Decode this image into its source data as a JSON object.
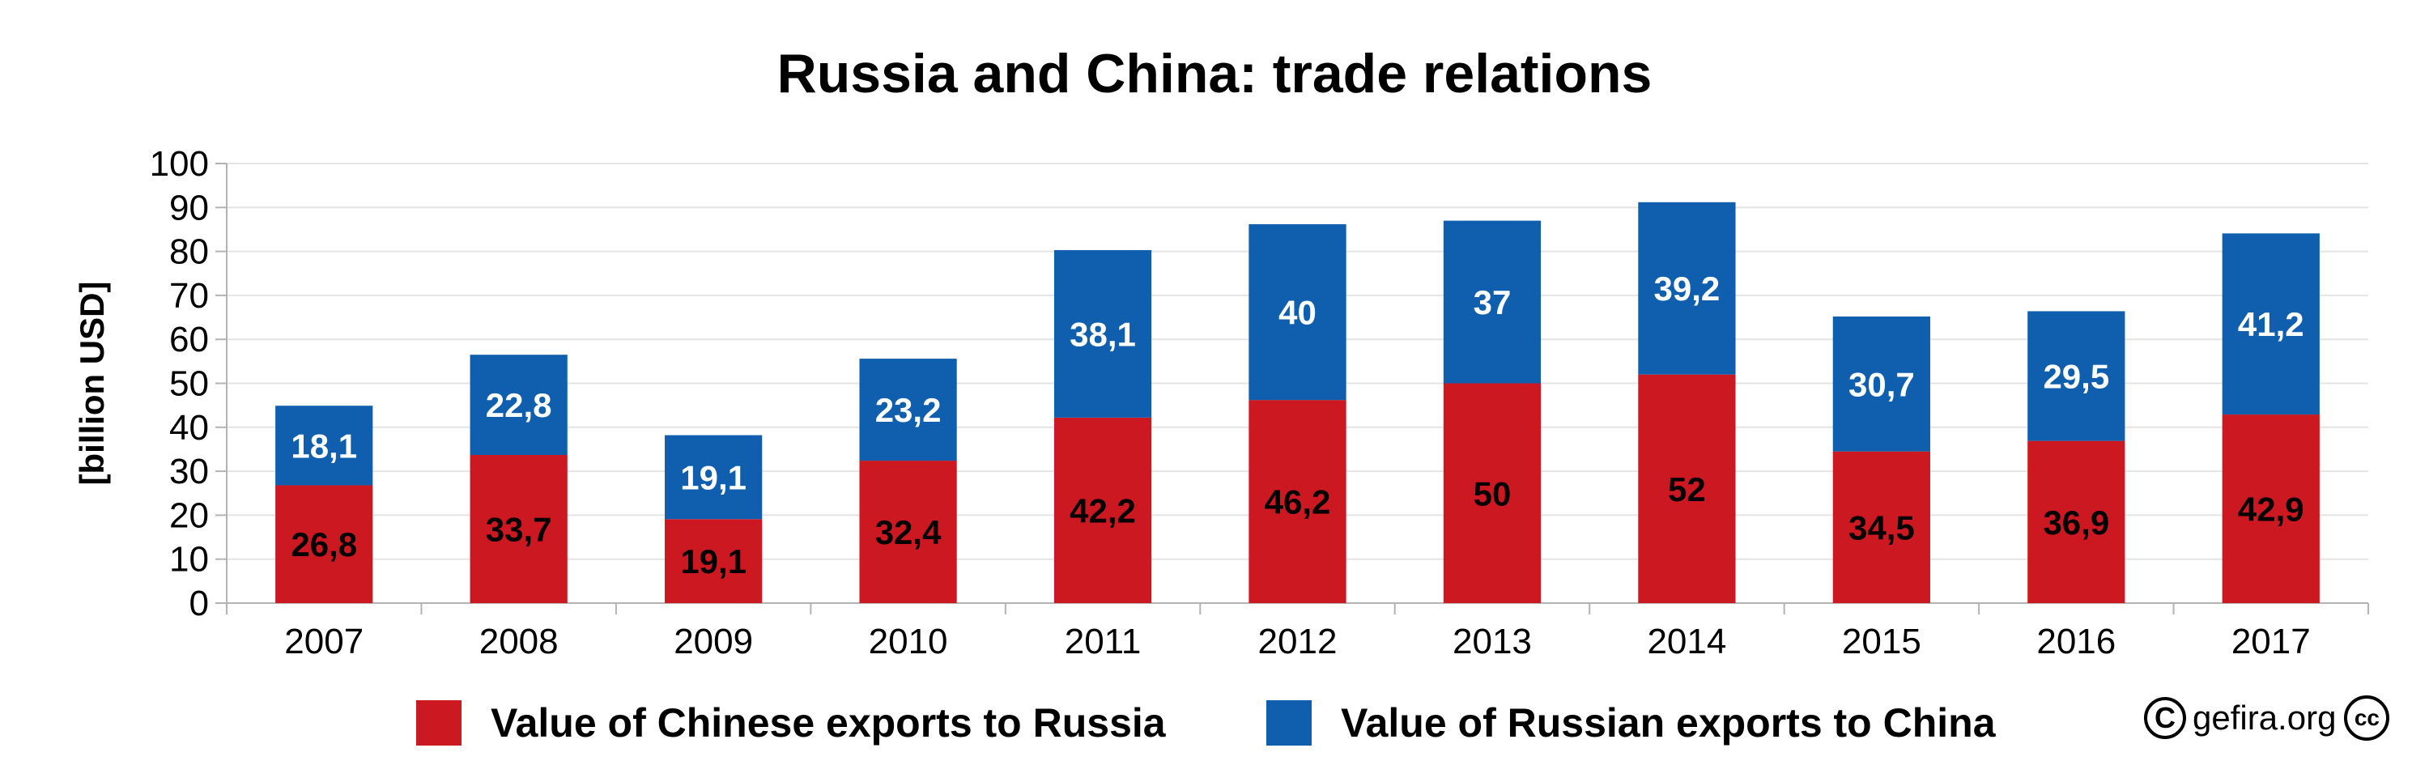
{
  "chart_data": {
    "type": "bar",
    "stacked": true,
    "title": "Russia and China: trade relations",
    "ylabel": "[billion USD]",
    "xlabel": "",
    "ylim": [
      0,
      100
    ],
    "yticks": [
      0,
      10,
      20,
      30,
      40,
      50,
      60,
      70,
      80,
      90,
      100
    ],
    "grid": true,
    "legend_position": "bottom",
    "categories": [
      "2007",
      "2008",
      "2009",
      "2010",
      "2011",
      "2012",
      "2013",
      "2014",
      "2015",
      "2016",
      "2017"
    ],
    "series": [
      {
        "name": "Value of Chinese exports to Russia",
        "color": "#cc1820",
        "label_color": "#000000",
        "values": [
          26.8,
          33.7,
          19.1,
          32.4,
          42.2,
          46.2,
          50,
          52,
          34.5,
          36.9,
          42.9
        ],
        "labels": [
          "26,8",
          "33,7",
          "19,1",
          "32,4",
          "42,2",
          "46,2",
          "50",
          "52",
          "34,5",
          "36,9",
          "42,9"
        ]
      },
      {
        "name": "Value of Russian exports to China",
        "color": "#0f5fae",
        "label_color": "#ffffff",
        "values": [
          18.1,
          22.8,
          19.1,
          23.2,
          38.1,
          40,
          37,
          39.2,
          30.7,
          29.5,
          41.2
        ],
        "labels": [
          "18,1",
          "22,8",
          "19,1",
          "23,2",
          "38,1",
          "40",
          "37",
          "39,2",
          "30,7",
          "29,5",
          "41,2"
        ]
      }
    ]
  },
  "credit": {
    "copyright_symbol": "C",
    "source": "gefira.org",
    "license_symbol": "cc"
  }
}
